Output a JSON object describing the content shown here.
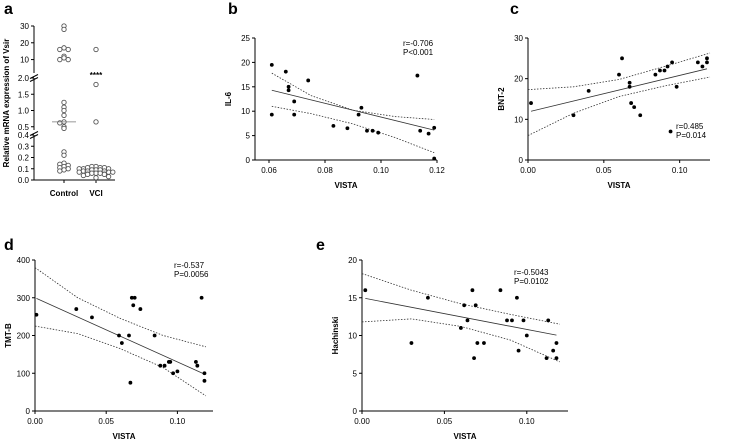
{
  "chart_data": [
    {
      "panel": "a",
      "type": "scatter",
      "ylabel": "Relative mRNA expression of Vsir",
      "categories": [
        "Control",
        "VCI"
      ],
      "y_segments": [
        {
          "range": [
            0,
            0.4
          ],
          "ticks": [
            "0.0",
            "0.1",
            "0.2",
            "0.3",
            "0.4"
          ]
        },
        {
          "range": [
            0.4,
            2.0
          ],
          "ticks": [
            "0.5",
            "1.0",
            "1.5",
            "2.0"
          ]
        },
        {
          "range": [
            2.0,
            30
          ],
          "ticks": [
            "10",
            "20",
            "30"
          ]
        }
      ],
      "series": [
        {
          "name": "Control",
          "values": [
            30,
            28,
            17,
            16,
            16,
            12,
            11,
            10,
            10,
            1.25,
            1.1,
            1.0,
            0.85,
            0.65,
            0.62,
            0.5,
            0.45,
            0.25,
            0.22,
            0.15,
            0.14,
            0.13,
            0.12,
            0.11,
            0.1,
            0.09,
            0.08
          ],
          "median": 0.65
        },
        {
          "name": "VCI",
          "values": [
            16,
            1.8,
            0.65,
            0.12,
            0.12,
            0.11,
            0.11,
            0.11,
            0.1,
            0.1,
            0.1,
            0.09,
            0.09,
            0.09,
            0.08,
            0.08,
            0.08,
            0.07,
            0.07,
            0.07,
            0.06,
            0.06,
            0.06,
            0.05,
            0.05,
            0.04,
            0.03,
            0.02
          ],
          "median": 0.08
        }
      ],
      "annotation": "****"
    },
    {
      "panel": "b",
      "type": "scatter",
      "xlabel": "VISTA",
      "ylabel": "IL-6",
      "xlim": [
        0.055,
        0.12
      ],
      "ylim": [
        0,
        25
      ],
      "xticks": [
        "0.06",
        "0.08",
        "0.10",
        "0.12"
      ],
      "yticks": [
        "0",
        "5",
        "10",
        "15",
        "20",
        "25"
      ],
      "x": [
        0.061,
        0.061,
        0.066,
        0.067,
        0.067,
        0.069,
        0.069,
        0.074,
        0.083,
        0.088,
        0.092,
        0.093,
        0.095,
        0.097,
        0.099,
        0.113,
        0.114,
        0.117,
        0.119,
        0.119
      ],
      "y": [
        19.5,
        9.3,
        18.1,
        14.3,
        15.0,
        12.0,
        9.3,
        16.3,
        7.0,
        6.5,
        9.3,
        10.7,
        6.0,
        6.0,
        5.6,
        17.3,
        6.0,
        5.4,
        6.6,
        0.3
      ],
      "fit": {
        "slope": -141.0,
        "intercept": 22.9
      },
      "ci_upper": [
        [
          0.061,
          17.8
        ],
        [
          0.075,
          13.2
        ],
        [
          0.09,
          10.2
        ],
        [
          0.105,
          8.9
        ],
        [
          0.119,
          8.3
        ]
      ],
      "ci_lower": [
        [
          0.061,
          11.0
        ],
        [
          0.075,
          9.5
        ],
        [
          0.09,
          7.4
        ],
        [
          0.105,
          4.6
        ],
        [
          0.119,
          1.5
        ]
      ],
      "stats": [
        "r=-0.706",
        "P<0.001"
      ]
    },
    {
      "panel": "c",
      "type": "scatter",
      "xlabel": "VISTA",
      "ylabel": "BNT-2",
      "xlim": [
        0,
        0.12
      ],
      "ylim": [
        0,
        30
      ],
      "xticks": [
        "0.00",
        "0.05",
        "0.10"
      ],
      "yticks": [
        "0",
        "10",
        "20",
        "30"
      ],
      "x": [
        0.002,
        0.03,
        0.04,
        0.06,
        0.062,
        0.067,
        0.067,
        0.068,
        0.07,
        0.074,
        0.084,
        0.087,
        0.09,
        0.092,
        0.094,
        0.095,
        0.098,
        0.112,
        0.115,
        0.118,
        0.118
      ],
      "y": [
        14,
        11,
        17,
        21,
        25,
        19,
        18,
        14,
        13,
        11,
        21,
        22,
        22,
        23,
        7,
        24,
        18,
        24,
        23,
        24,
        25
      ],
      "fit": {
        "slope": 90.0,
        "intercept": 11.8
      },
      "ci_upper": [
        [
          0,
          17.3
        ],
        [
          0.03,
          18.0
        ],
        [
          0.06,
          19.8
        ],
        [
          0.09,
          23.0
        ],
        [
          0.12,
          26.3
        ]
      ],
      "ci_lower": [
        [
          0,
          6.0
        ],
        [
          0.03,
          11.5
        ],
        [
          0.06,
          15.6
        ],
        [
          0.09,
          18.2
        ],
        [
          0.12,
          20.4
        ]
      ],
      "stats": [
        "r=0.485",
        "P=0.014"
      ]
    },
    {
      "panel": "d",
      "type": "scatter",
      "xlabel": "VISTA",
      "ylabel": "TMT-B",
      "xlim": [
        0,
        0.125
      ],
      "ylim": [
        0,
        400
      ],
      "xticks": [
        "0.00",
        "0.05",
        "0.10"
      ],
      "yticks": [
        "0",
        "100",
        "200",
        "300",
        "400"
      ],
      "x": [
        0.001,
        0.029,
        0.04,
        0.059,
        0.061,
        0.066,
        0.067,
        0.068,
        0.069,
        0.07,
        0.074,
        0.084,
        0.088,
        0.091,
        0.094,
        0.095,
        0.097,
        0.1,
        0.113,
        0.114,
        0.117,
        0.119,
        0.119
      ],
      "y": [
        255,
        270,
        248,
        200,
        180,
        200,
        75,
        300,
        280,
        300,
        270,
        200,
        120,
        120,
        130,
        130,
        100,
        105,
        130,
        120,
        300,
        80,
        100
      ],
      "fit": {
        "slope": -1700,
        "intercept": 300
      },
      "ci_upper": [
        [
          0,
          380
        ],
        [
          0.03,
          300
        ],
        [
          0.06,
          245
        ],
        [
          0.09,
          200
        ],
        [
          0.12,
          170
        ]
      ],
      "ci_lower": [
        [
          0,
          225
        ],
        [
          0.03,
          205
        ],
        [
          0.06,
          165
        ],
        [
          0.09,
          115
        ],
        [
          0.12,
          40
        ]
      ],
      "stats": [
        "r=-0.537",
        "P=0.0056"
      ]
    },
    {
      "panel": "e",
      "type": "scatter",
      "xlabel": "VISTA",
      "ylabel": "Hachinski",
      "xlim": [
        0,
        0.125
      ],
      "ylim": [
        0,
        20
      ],
      "xticks": [
        "0.00",
        "0.05",
        "0.10"
      ],
      "yticks": [
        "0",
        "5",
        "10",
        "15",
        "20"
      ],
      "x": [
        0.002,
        0.03,
        0.04,
        0.06,
        0.062,
        0.064,
        0.067,
        0.068,
        0.069,
        0.07,
        0.074,
        0.084,
        0.088,
        0.091,
        0.094,
        0.095,
        0.098,
        0.1,
        0.112,
        0.113,
        0.116,
        0.118,
        0.118
      ],
      "y": [
        16,
        9,
        15,
        11,
        14,
        12,
        16,
        7,
        14,
        9,
        9,
        16,
        12,
        12,
        15,
        8,
        12,
        10,
        7,
        12,
        8,
        9,
        7
      ],
      "fit": {
        "slope": -42.0,
        "intercept": 15.0
      },
      "ci_upper": [
        [
          0,
          18.2
        ],
        [
          0.03,
          16.0
        ],
        [
          0.06,
          14.2
        ],
        [
          0.09,
          12.8
        ],
        [
          0.12,
          11.5
        ]
      ],
      "ci_lower": [
        [
          0,
          11.8
        ],
        [
          0.03,
          12.2
        ],
        [
          0.06,
          11.2
        ],
        [
          0.09,
          9.4
        ],
        [
          0.12,
          6.5
        ]
      ],
      "stats": [
        "r=-0.5043",
        "P=0.0102"
      ]
    }
  ]
}
